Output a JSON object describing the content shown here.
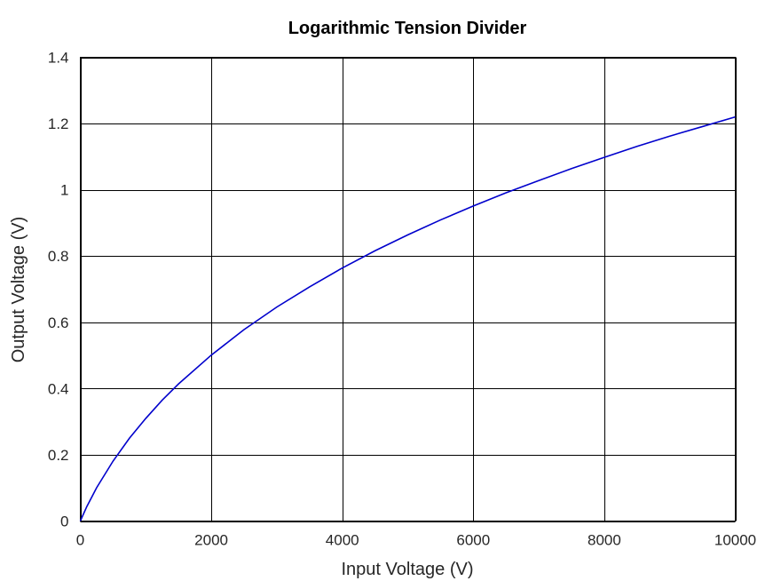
{
  "chart_data": {
    "type": "line",
    "title": "Logarithmic Tension Divider",
    "xlabel": "Input Voltage (V)",
    "ylabel": "Output Voltage (V)",
    "xlim": [
      0,
      10000
    ],
    "ylim": [
      0,
      1.4
    ],
    "xticks": [
      0,
      2000,
      4000,
      6000,
      8000,
      10000
    ],
    "xtick_labels": [
      "0",
      "2000",
      "4000",
      "6000",
      "8000",
      "10000"
    ],
    "yticks": [
      0,
      0.2,
      0.4,
      0.6,
      0.8,
      1.0,
      1.2,
      1.4
    ],
    "ytick_labels": [
      "0",
      "0.2",
      "0.4",
      "0.6",
      "0.8",
      "1",
      "1.2",
      "1.4"
    ],
    "grid": true,
    "series": [
      {
        "color": "#0000cc",
        "x": [
          0,
          100,
          250,
          500,
          750,
          1000,
          1250,
          1500,
          2000,
          2500,
          3000,
          3500,
          4000,
          4500,
          5000,
          5500,
          6000,
          6500,
          7000,
          7500,
          8000,
          8500,
          9000,
          9500,
          10000
        ],
        "y": [
          0,
          0.044,
          0.101,
          0.181,
          0.25,
          0.31,
          0.365,
          0.414,
          0.501,
          0.578,
          0.646,
          0.707,
          0.764,
          0.816,
          0.864,
          0.909,
          0.951,
          0.991,
          1.028,
          1.064,
          1.098,
          1.131,
          1.162,
          1.191,
          1.22
        ]
      }
    ]
  }
}
